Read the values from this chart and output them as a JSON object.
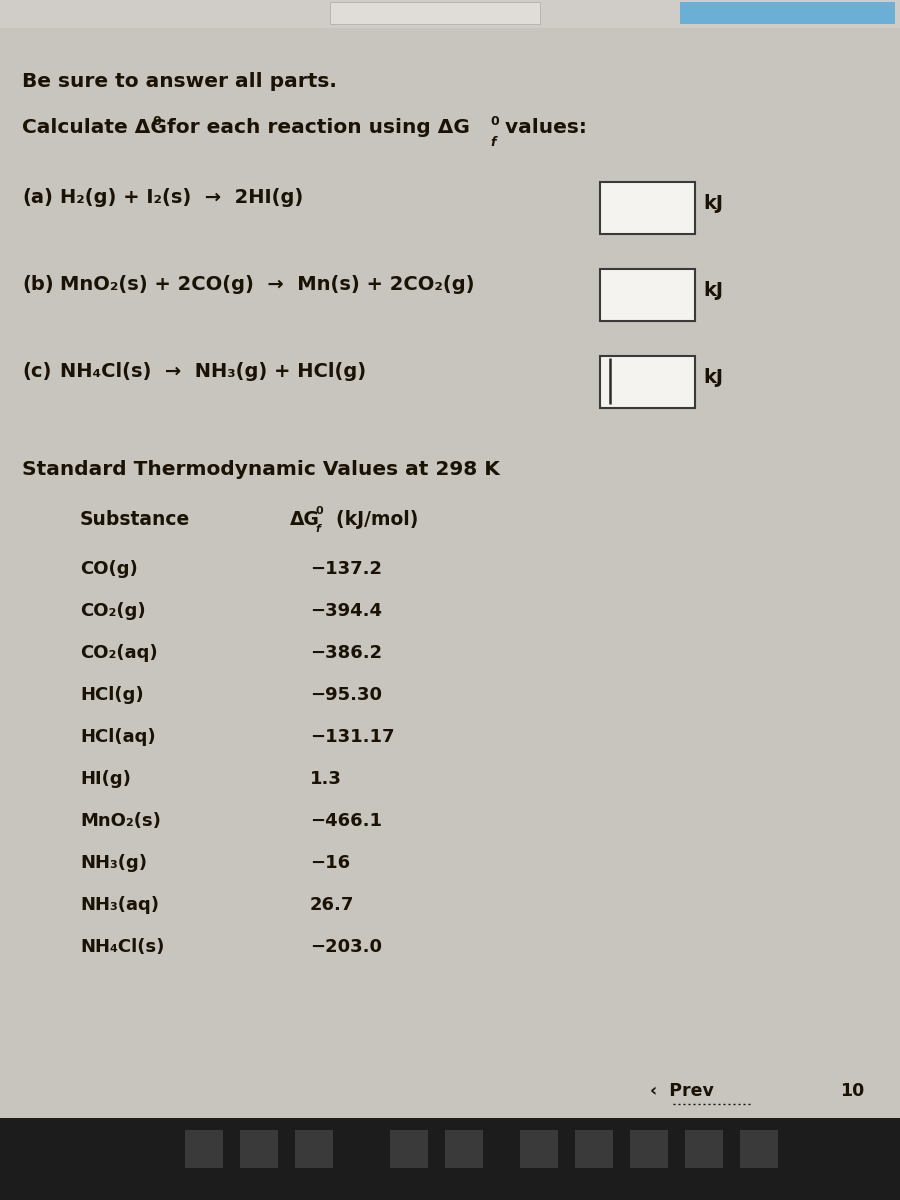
{
  "bg_color": "#c8c4be",
  "text_color": "#1a1205",
  "header": "Be sure to answer all parts.",
  "reactions": [
    {
      "label": "(a)",
      "equation": "H₂(g) + I₂(s)  →  2HI(g)"
    },
    {
      "label": "(b)",
      "equation": "MnO₂(s) + 2CO(g)  →  Mn(s) + 2CO₂(g)"
    },
    {
      "label": "(c)",
      "equation": "NH₄Cl(s)  →  NH₃(g) + HCl(g)"
    }
  ],
  "table_title": "Standard Thermodynamic Values at 298 K",
  "col1_header": "Substance",
  "substances": [
    "CO(g)",
    "CO₂(g)",
    "CO₂(aq)",
    "HCl(g)",
    "HCl(aq)",
    "HI(g)",
    "MnO₂(s)",
    "NH₃(g)",
    "NH₃(aq)",
    "NH₄Cl(s)"
  ],
  "values": [
    "−137.2",
    "−394.4",
    "−386.2",
    "−95.30",
    "−131.17",
    "1.3",
    "−466.1",
    "−16",
    "26.7",
    "−203.0"
  ],
  "prev_label": "Prev",
  "page_number": "10",
  "box_border": "#3a3a3a",
  "taskbar_color": "#1c1c1c",
  "topbar_left_color": "#b0b0b0",
  "topbar_right_color": "#5b9bd5"
}
